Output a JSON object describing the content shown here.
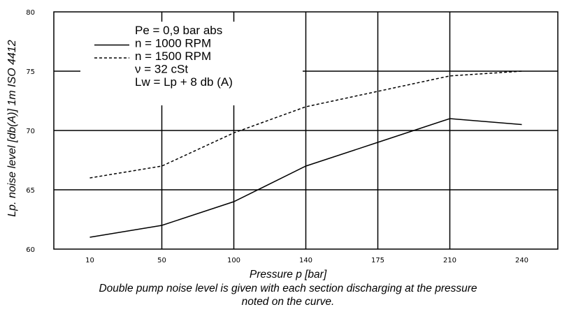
{
  "chart_data": {
    "type": "line",
    "x": [
      10,
      50,
      100,
      140,
      175,
      210,
      240
    ],
    "x_tick_labels": [
      "10",
      "50",
      "100",
      "140",
      "175",
      "210",
      "240"
    ],
    "xlabel": "Pressure p [bar]",
    "ylabel": "Lp. noise level [db(A)] 1m ISO 4412",
    "ylim": [
      60,
      80
    ],
    "y_ticks": [
      60,
      65,
      70,
      75,
      80
    ],
    "y_tick_labels": [
      "60",
      "65",
      "70",
      "75",
      "80"
    ],
    "grid": true,
    "legend": {
      "placement": "top-left",
      "lines": [
        "Pe = 0,9 bar abs",
        "n = 1000 RPM",
        "n = 1500 RPM",
        "ν = 32 cSt",
        "Lw = Lp + 8 db (A)"
      ]
    },
    "series": [
      {
        "name": "n = 1000 RPM",
        "style": "solid",
        "values": [
          61,
          62,
          64,
          67,
          69,
          71,
          70.5
        ]
      },
      {
        "name": "n = 1500 RPM",
        "style": "dashed",
        "values": [
          66,
          67,
          69.8,
          72,
          73.3,
          74.6,
          75
        ]
      }
    ]
  },
  "caption": {
    "line1": "Double pump noise level is given with each section discharging at the pressure",
    "line2": "noted on the curve."
  }
}
